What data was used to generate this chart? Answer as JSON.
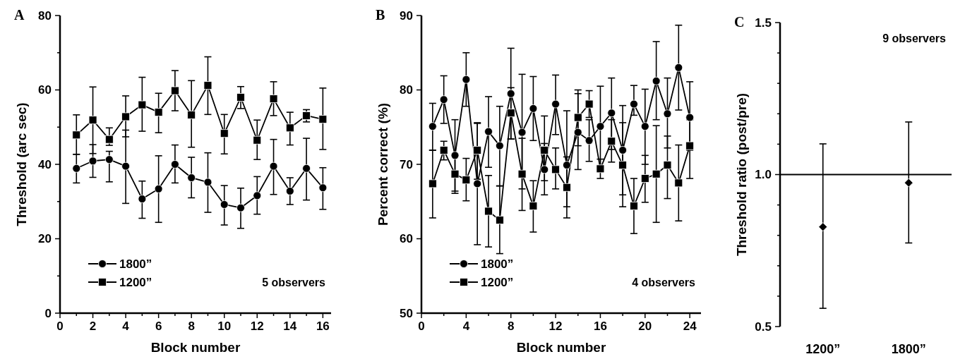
{
  "chart_data": [
    {
      "type": "line",
      "title": "A",
      "xlabel": "Block number",
      "ylabel": "Threshold (arc sec)",
      "x": [
        1,
        2,
        3,
        4,
        5,
        6,
        7,
        8,
        9,
        10,
        11,
        12,
        13,
        14,
        15,
        16
      ],
      "xlim": [
        0,
        16.5
      ],
      "ylim": [
        0,
        80
      ],
      "xticks": [
        0,
        {
          "value": 1,
          "label": null
        },
        2,
        {
          "value": 3,
          "label": null
        },
        4,
        {
          "value": 5,
          "label": null
        },
        6,
        {
          "value": 7,
          "label": null
        },
        8,
        {
          "value": 9,
          "label": null
        },
        10,
        {
          "value": 11,
          "label": null
        },
        12,
        {
          "value": 13,
          "label": null
        },
        14,
        {
          "value": 15,
          "label": null
        },
        16
      ],
      "yticks": [
        0,
        {
          "value": 10,
          "label": null
        },
        20,
        {
          "value": 30,
          "label": null
        },
        40,
        {
          "value": 50,
          "label": null
        },
        60,
        {
          "value": 70,
          "label": null
        },
        80
      ],
      "legend": "bottom left",
      "annotations": [
        "5 observers"
      ],
      "series": [
        {
          "name": "1800”",
          "color": "#000000",
          "marker": "circle",
          "values": [
            38.9,
            40.9,
            41.3,
            39.5,
            30.7,
            33.4,
            40.0,
            36.4,
            35.2,
            29.2,
            28.3,
            31.6,
            39.5,
            32.8,
            38.9,
            33.7
          ],
          "errors": [
            [
              35.0,
              42.7
            ],
            [
              36.5,
              45.3
            ],
            [
              35.3,
              43.5
            ],
            [
              29.5,
              49.2
            ],
            [
              25.5,
              35.5
            ],
            [
              24.4,
              42.3
            ],
            [
              35.0,
              45.2
            ],
            [
              31.0,
              41.9
            ],
            [
              27.1,
              43.1
            ],
            [
              23.7,
              34.3
            ],
            [
              22.8,
              33.6
            ],
            [
              26.6,
              36.7
            ],
            [
              31.9,
              46.7
            ],
            [
              29.2,
              36.4
            ],
            [
              30.4,
              47.0
            ],
            [
              27.9,
              39.1
            ]
          ]
        },
        {
          "name": "1200”",
          "color": "#000000",
          "marker": "square",
          "values": [
            47.9,
            51.9,
            46.7,
            52.8,
            56.0,
            54.0,
            59.8,
            53.3,
            61.2,
            48.3,
            58.0,
            46.5,
            57.6,
            49.8,
            53.1,
            52.1
          ],
          "errors": [
            [
              42.7,
              53.3
            ],
            [
              42.9,
              60.8
            ],
            [
              45.1,
              49.8
            ],
            [
              47.4,
              58.4
            ],
            [
              48.9,
              63.4
            ],
            [
              48.5,
              59.1
            ],
            [
              54.4,
              65.2
            ],
            [
              44.6,
              62.5
            ],
            [
              53.4,
              68.9
            ],
            [
              42.8,
              53.4
            ],
            [
              55.0,
              60.9
            ],
            [
              41.3,
              51.9
            ],
            [
              53.1,
              62.2
            ],
            [
              45.2,
              54.0
            ],
            [
              51.4,
              54.7
            ],
            [
              44.0,
              60.5
            ]
          ]
        }
      ]
    },
    {
      "type": "line",
      "title": "B",
      "xlabel": "Block number",
      "ylabel": "Percent correct (%)",
      "x": [
        1,
        2,
        3,
        4,
        5,
        6,
        7,
        8,
        9,
        10,
        11,
        12,
        13,
        14,
        15,
        16,
        17,
        18,
        19,
        20,
        21,
        22,
        23,
        24
      ],
      "xlim": [
        0,
        25
      ],
      "ylim": [
        50,
        90
      ],
      "xticks": [
        0,
        {
          "value": 2,
          "label": null
        },
        4,
        {
          "value": 6,
          "label": null
        },
        8,
        {
          "value": 10,
          "label": null
        },
        12,
        {
          "value": 14,
          "label": null
        },
        16,
        {
          "value": 18,
          "label": null
        },
        20,
        {
          "value": 22,
          "label": null
        },
        24
      ],
      "yticks": [
        50,
        60,
        70,
        80,
        90
      ],
      "legend": "bottom left",
      "annotations": [
        "4 observers"
      ],
      "series": [
        {
          "name": "1800”",
          "color": "#000000",
          "marker": "circle",
          "values": [
            75.1,
            78.7,
            71.2,
            81.4,
            67.4,
            74.4,
            72.5,
            79.5,
            74.3,
            77.5,
            69.3,
            78.1,
            69.9,
            74.3,
            73.2,
            75.1,
            76.9,
            71.9,
            78.1,
            75.1,
            81.2,
            76.8,
            83.0,
            76.3
          ],
          "errors": [
            [
              71.9,
              78.2
            ],
            [
              75.5,
              81.9
            ],
            [
              66.4,
              76.0
            ],
            [
              77.8,
              85.0
            ],
            [
              59.2,
              75.6
            ],
            [
              69.6,
              79.1
            ],
            [
              67.1,
              77.8
            ],
            [
              73.4,
              85.6
            ],
            [
              66.7,
              82.1
            ],
            [
              73.2,
              81.8
            ],
            [
              65.9,
              72.8
            ],
            [
              74.0,
              82.0
            ],
            [
              64.3,
              77.2
            ],
            [
              69.3,
              79.5
            ],
            [
              70.4,
              76.0
            ],
            [
              69.6,
              80.5
            ],
            [
              72.0,
              81.6
            ],
            [
              65.9,
              77.9
            ],
            [
              76.6,
              80.6
            ],
            [
              70.0,
              80.1
            ],
            [
              76.0,
              86.5
            ],
            [
              72.2,
              81.6
            ],
            [
              77.3,
              88.7
            ],
            [
              71.9,
              81.1
            ]
          ]
        },
        {
          "name": "1200”",
          "color": "#000000",
          "marker": "square",
          "values": [
            67.4,
            71.9,
            68.7,
            67.9,
            71.9,
            63.7,
            62.5,
            76.9,
            68.7,
            64.4,
            71.9,
            69.3,
            66.9,
            76.3,
            78.1,
            69.4,
            73.1,
            69.9,
            64.4,
            68.1,
            68.7,
            69.9,
            67.5,
            72.5
          ],
          "errors": [
            [
              62.8,
              71.9
            ],
            [
              70.6,
              73.1
            ],
            [
              66.1,
              71.3
            ],
            [
              65.1,
              70.8
            ],
            [
              68.0,
              75.5
            ],
            [
              58.9,
              68.5
            ],
            [
              58.0,
              67.1
            ],
            [
              73.4,
              80.3
            ],
            [
              63.8,
              73.5
            ],
            [
              60.9,
              67.8
            ],
            [
              67.8,
              76.5
            ],
            [
              66.7,
              72.2
            ],
            [
              62.8,
              71.0
            ],
            [
              72.5,
              80.0
            ],
            [
              76.3,
              79.9
            ],
            [
              68.1,
              70.7
            ],
            [
              70.3,
              76.0
            ],
            [
              64.3,
              75.6
            ],
            [
              60.7,
              68.1
            ],
            [
              64.9,
              71.2
            ],
            [
              62.2,
              75.2
            ],
            [
              65.4,
              73.8
            ],
            [
              62.4,
              72.6
            ],
            [
              68.1,
              76.0
            ]
          ]
        }
      ]
    },
    {
      "type": "scatter",
      "title": "C",
      "ylabel": "Threshold ratio (post/pre)",
      "categories": [
        "1200”",
        "1800”"
      ],
      "ylim": [
        0.5,
        1.5
      ],
      "yticks": [
        {
          "value": 0.5,
          "label": "0.5"
        },
        {
          "value": 0.6,
          "label": null
        },
        {
          "value": 0.7,
          "label": null
        },
        {
          "value": 0.8,
          "label": null
        },
        {
          "value": 0.9,
          "label": null
        },
        {
          "value": 1,
          "label": "1.0"
        },
        {
          "value": 1.1,
          "label": null
        },
        {
          "value": 1.2,
          "label": null
        },
        {
          "value": 1.3,
          "label": null
        },
        {
          "value": 1.4,
          "label": null
        },
        {
          "value": 1.5,
          "label": "1.5"
        }
      ],
      "annotations": [
        "9 observers"
      ],
      "ref_lines": [
        {
          "axis": "y",
          "value": 1,
          "color": "#000000"
        }
      ],
      "series": [
        {
          "color": "#000000",
          "marker": "diamond",
          "values": [
            0.828,
            0.973
          ],
          "errors": [
            [
              0.56,
              1.101
            ],
            [
              0.775,
              1.173
            ]
          ]
        }
      ]
    }
  ]
}
